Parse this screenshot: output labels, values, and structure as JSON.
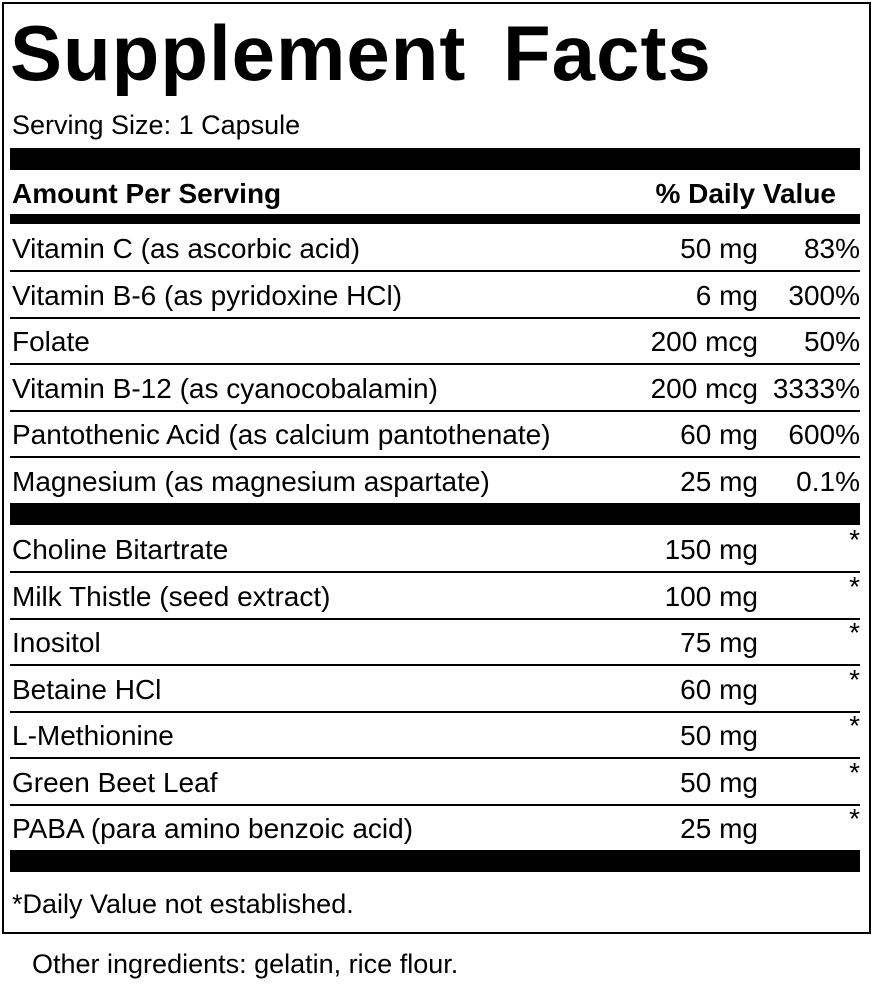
{
  "title": "Supplement Facts",
  "serving_size": "Serving Size: 1 Capsule",
  "header": {
    "amount": "Amount Per Serving",
    "dv": "% Daily Value"
  },
  "vitamins": [
    {
      "name": "Vitamin C (as ascorbic acid)",
      "amount": "50 mg",
      "dv": "83%"
    },
    {
      "name": "Vitamin B-6 (as pyridoxine HCl)",
      "amount": "6 mg",
      "dv": "300%"
    },
    {
      "name": "Folate",
      "amount": "200 mcg",
      "dv": "50%"
    },
    {
      "name": "Vitamin B-12 (as cyanocobalamin)",
      "amount": "200 mcg",
      "dv": "3333%"
    },
    {
      "name": "Pantothenic Acid (as calcium pantothenate)",
      "amount": "60 mg",
      "dv": "600%"
    },
    {
      "name": "Magnesium (as magnesium aspartate)",
      "amount": "25 mg",
      "dv": "0.1%"
    }
  ],
  "others": [
    {
      "name": "Choline Bitartrate",
      "amount": "150 mg",
      "dv": "*"
    },
    {
      "name": "Milk Thistle (seed extract)",
      "amount": "100 mg",
      "dv": "*"
    },
    {
      "name": "Inositol",
      "amount": "75 mg",
      "dv": "*"
    },
    {
      "name": "Betaine HCl",
      "amount": "60 mg",
      "dv": "*"
    },
    {
      "name": "L-Methionine",
      "amount": "50 mg",
      "dv": "*"
    },
    {
      "name": "Green Beet Leaf",
      "amount": "50 mg",
      "dv": "*"
    },
    {
      "name": "PABA (para amino benzoic acid)",
      "amount": "25 mg",
      "dv": "*"
    }
  ],
  "footnote": "*Daily Value not established.",
  "other_ingredients": "Other ingredients: gelatin, rice flour."
}
